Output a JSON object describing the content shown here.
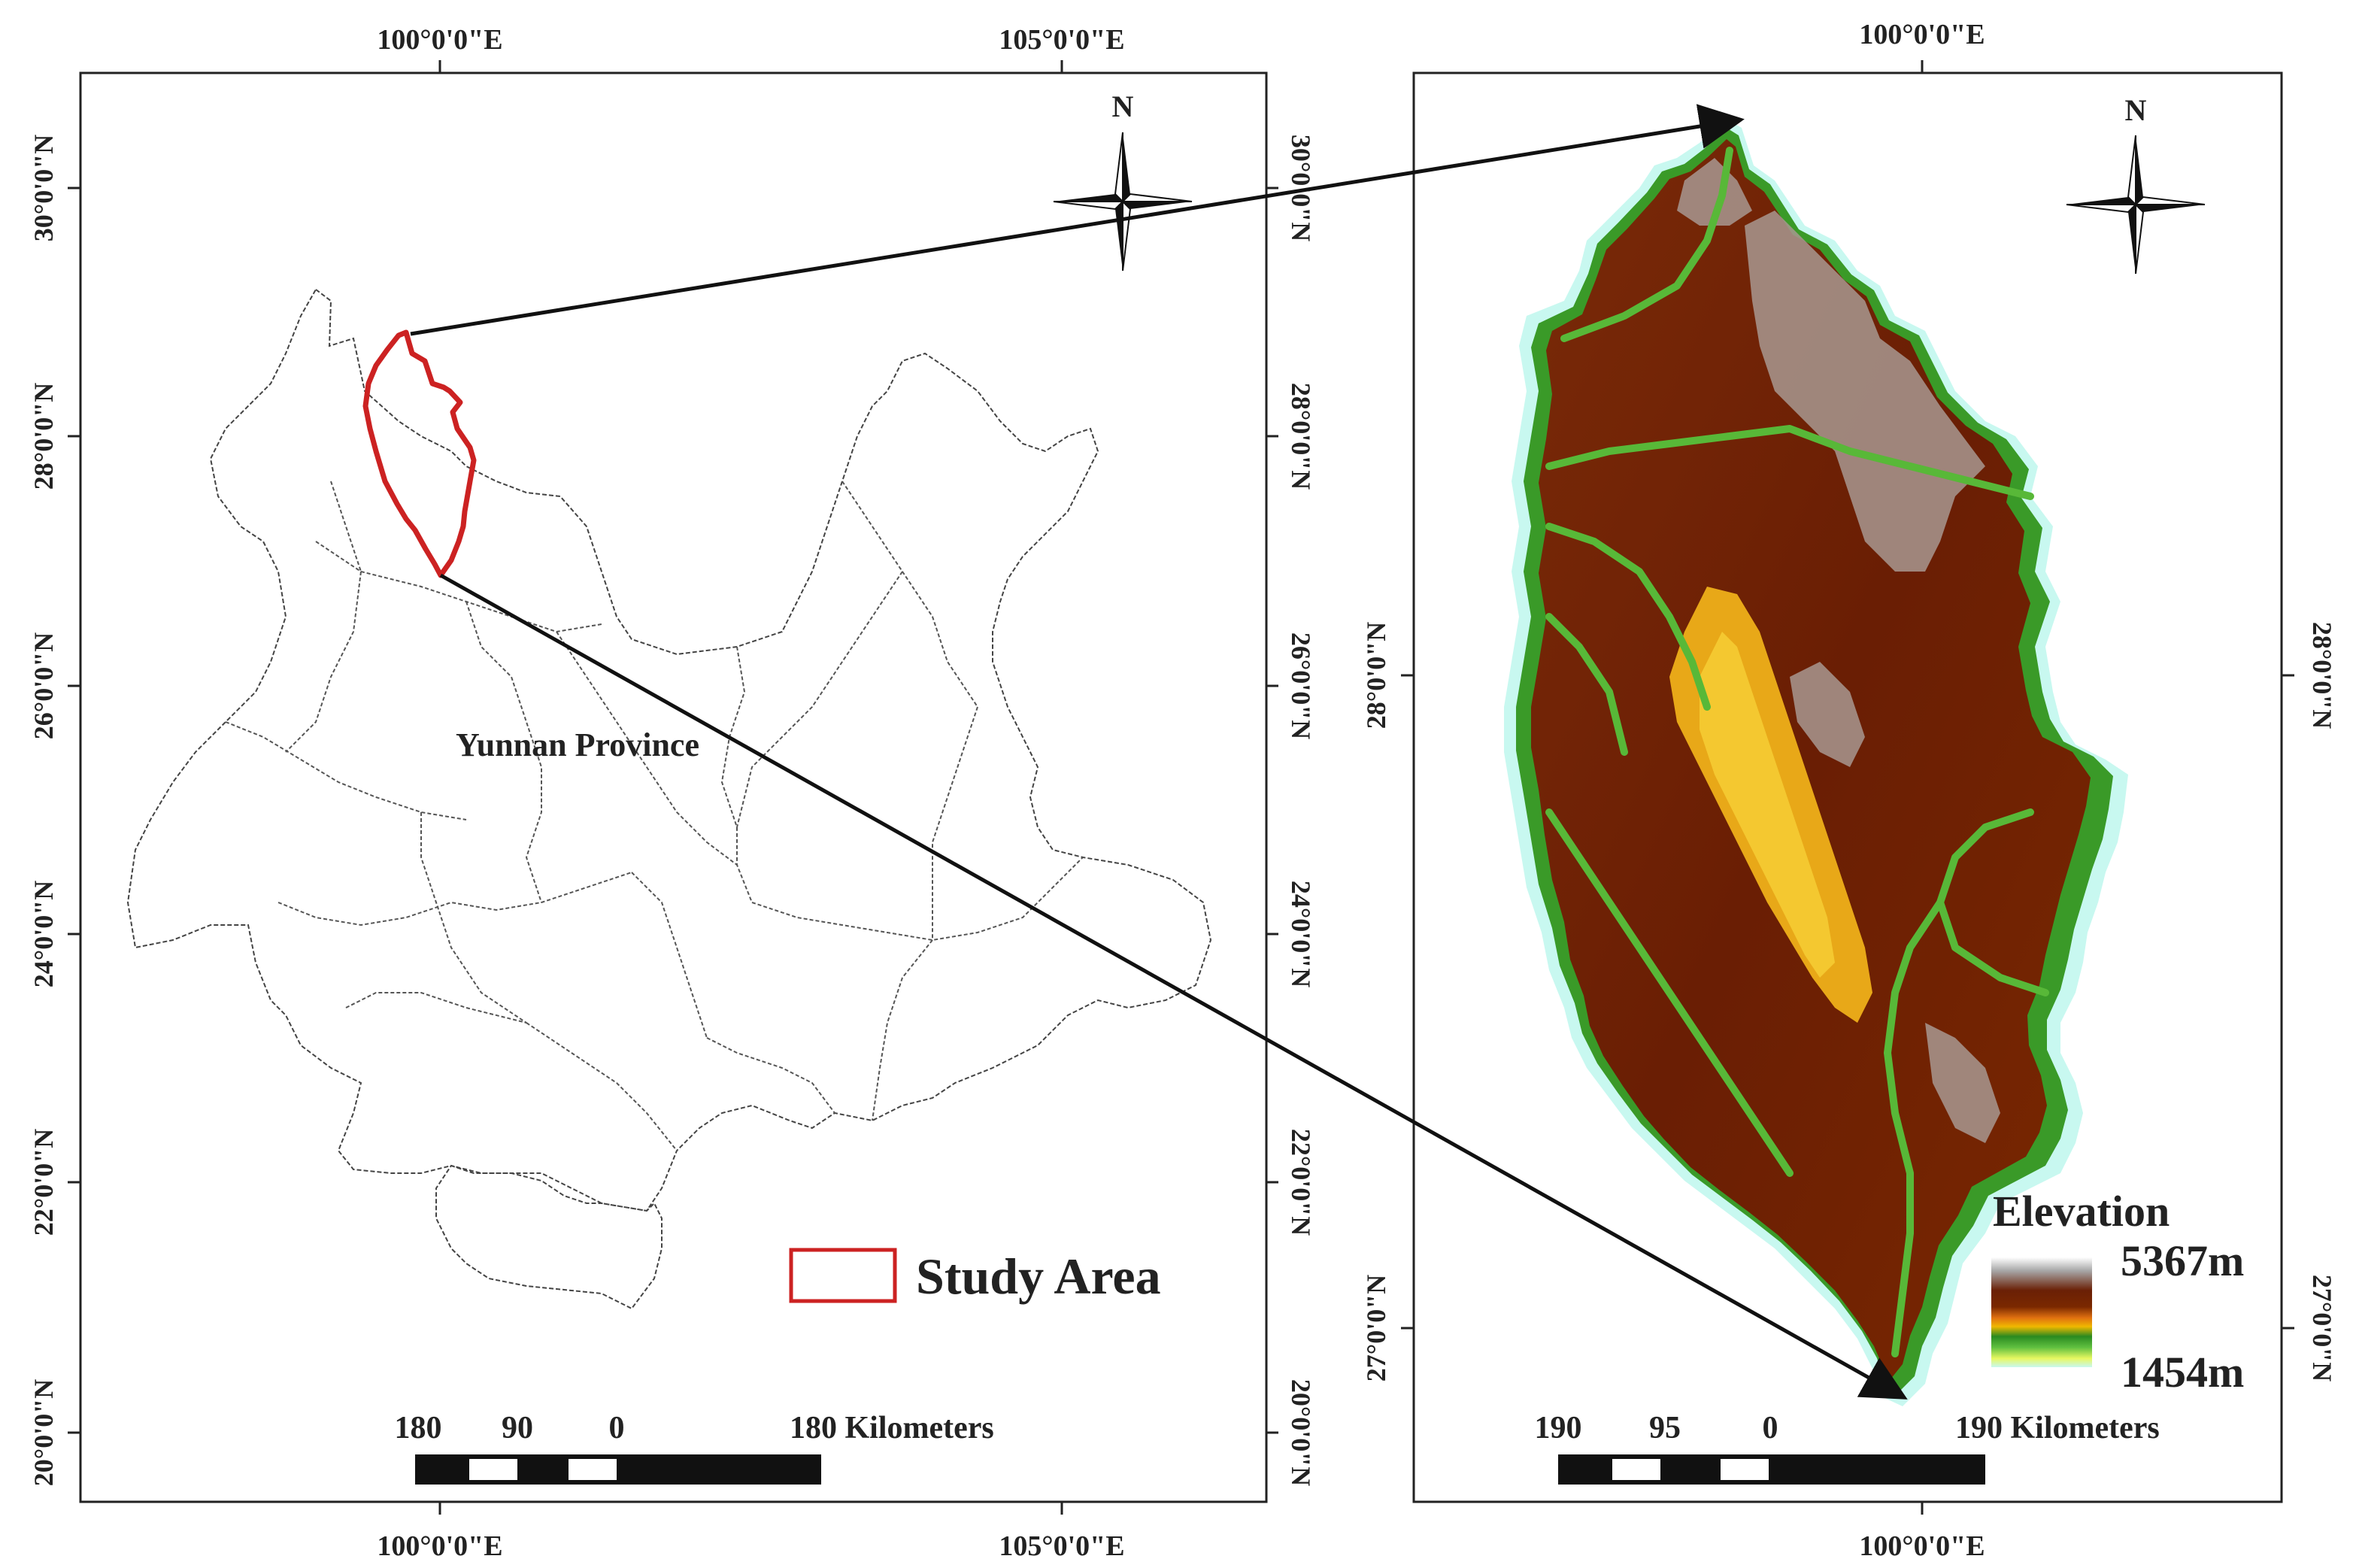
{
  "left_map": {
    "top_lon_labels": [
      "100°0'0\"E",
      "105°0'0\"E"
    ],
    "bottom_lon_labels": [
      "100°0'0\"E",
      "105°0'0\"E"
    ],
    "left_lat_labels": [
      "30°0'0\"N",
      "28°0'0\"N",
      "26°0'0\"N",
      "24°0'0\"N",
      "22°0'0\"N",
      "20°0'0\"N"
    ],
    "right_lat_labels": [
      "30°0'0\"N",
      "28°0'0\"N",
      "26°0'0\"N",
      "24°0'0\"N",
      "22°0'0\"N",
      "20°0'0\"N"
    ],
    "province_label": "Yunnan Province",
    "legend_label": "Study Area",
    "north_label": "N",
    "scale_labels": [
      "180",
      "90",
      "0",
      "180 Kilometers"
    ]
  },
  "right_map": {
    "top_lon_label": "100°0'0\"E",
    "bottom_lon_label": "100°0'0\"E",
    "left_lat_labels": [
      "28°0'0\"N",
      "27°0'0\"N"
    ],
    "right_lat_labels": [
      "28°0'0\"N",
      "27°0'0\"N"
    ],
    "north_label": "N",
    "legend_title": "Elevation",
    "elevation_max": "5367m",
    "elevation_min": "1454m",
    "scale_labels": [
      "190",
      "95",
      "0",
      "190 Kilometers"
    ]
  },
  "colors": {
    "study_area_outline": "#cc2222",
    "elevation_ramp": [
      "#ffffff",
      "#a0a0a0",
      "#5a1800",
      "#7a2800",
      "#d86010",
      "#f0b000",
      "#2a8a20",
      "#60c040",
      "#e8f860",
      "#c8f8f0"
    ]
  }
}
